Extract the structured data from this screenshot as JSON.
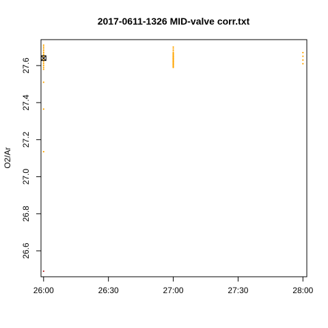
{
  "chart_data": {
    "type": "scatter",
    "title": "2017-0611-1326 MID-valve corr.txt",
    "xlabel": "",
    "ylabel": "O2/Ar",
    "xlim_min": [
      25.98,
      28.03
    ],
    "ylim": [
      26.46,
      27.74
    ],
    "x_ticks": [
      {
        "value": 26.0,
        "label": "26:00"
      },
      {
        "value": 26.5,
        "label": "26:30"
      },
      {
        "value": 27.0,
        "label": "27:00"
      },
      {
        "value": 27.5,
        "label": "27:30"
      },
      {
        "value": 28.0,
        "label": "28:00"
      }
    ],
    "y_ticks": [
      26.6,
      26.8,
      27.0,
      27.2,
      27.4,
      27.6
    ],
    "grid": false,
    "colors": {
      "points": "#ffa500",
      "outlier": "#b22222",
      "marker": "#000000"
    },
    "series": [
      {
        "x": [
          26.0,
          26.0,
          26.0,
          26.0,
          26.0,
          26.0,
          26.0,
          26.0,
          26.0,
          26.0,
          26.0,
          26.0,
          26.0,
          26.0,
          26.0,
          26.0,
          26.0,
          26.0,
          26.0,
          27.0,
          27.0,
          27.0,
          27.0,
          27.0,
          27.0,
          27.0,
          27.0,
          27.0,
          27.0,
          27.0,
          27.0,
          27.0,
          27.0,
          27.0,
          27.0,
          27.0,
          27.0,
          27.0,
          27.0,
          27.0,
          27.0,
          27.0,
          27.0,
          27.0,
          28.0,
          28.0,
          28.0,
          28.0
        ],
        "y": [
          27.71,
          27.7,
          27.69,
          27.68,
          27.67,
          27.66,
          27.66,
          27.65,
          27.64,
          27.63,
          27.62,
          27.61,
          27.6,
          27.59,
          27.58,
          27.51,
          27.365,
          27.135,
          26.49,
          27.7,
          27.69,
          27.68,
          27.67,
          27.665,
          27.66,
          27.655,
          27.65,
          27.645,
          27.64,
          27.635,
          27.63,
          27.625,
          27.62,
          27.615,
          27.61,
          27.605,
          27.6,
          27.595,
          27.59,
          27.65,
          27.64,
          27.63,
          27.62,
          27.61,
          27.67,
          27.65,
          27.63,
          27.61
        ]
      }
    ],
    "outlier": {
      "x": 26.0,
      "y": 26.49
    },
    "highlight": {
      "x": 26.0,
      "y": 27.64
    }
  }
}
